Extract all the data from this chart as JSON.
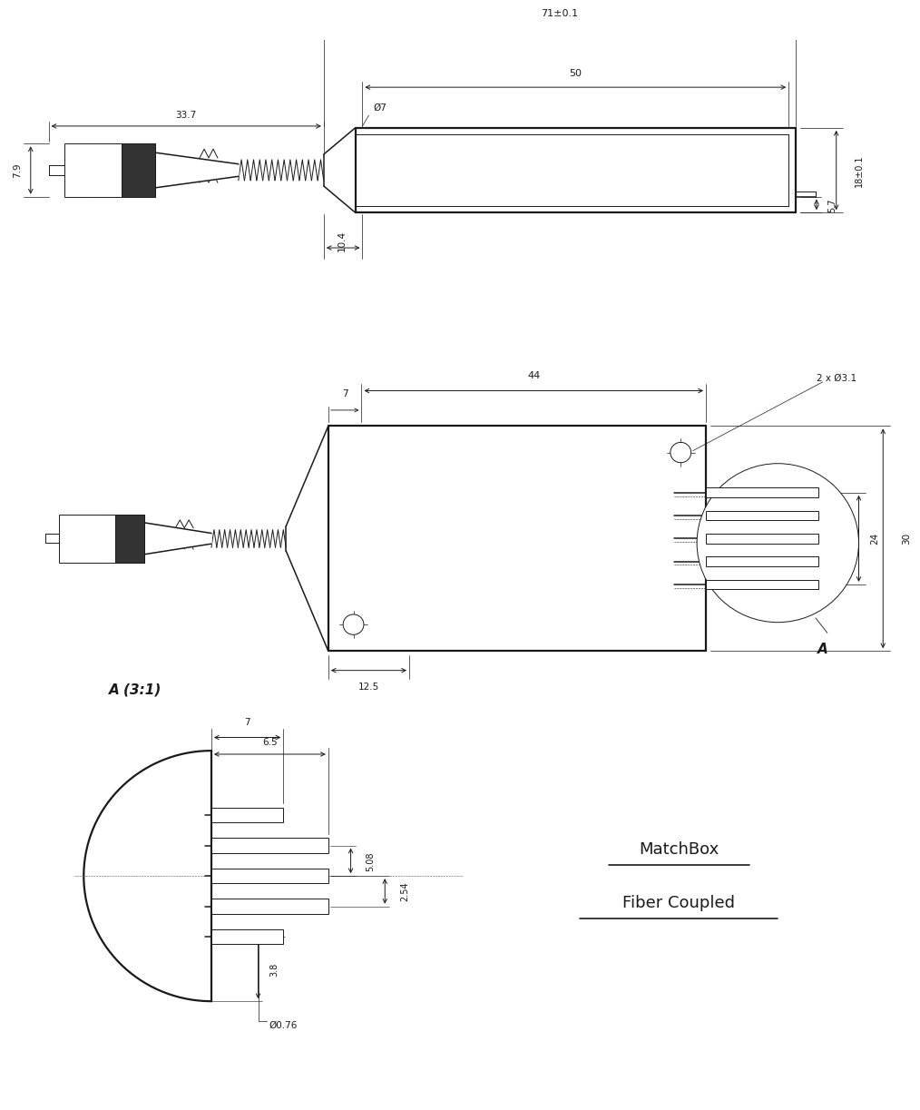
{
  "bg_color": "#ffffff",
  "line_color": "#1a1a1a",
  "fig_width": 10.0,
  "fig_height": 12.03,
  "dpi": 100,
  "view1": {
    "dim_71": "71±0.1",
    "dim_50": "50",
    "dim_33_7": "33.7",
    "dim_7_9": "7.9",
    "dim_phi7": "Ø7",
    "dim_10_4": "10.4",
    "dim_18": "18±0.1",
    "dim_5_7": "5.7"
  },
  "view2": {
    "dim_7": "7",
    "dim_44": "44",
    "dim_2x_phi31": "2 x Ø3.1",
    "dim_12_5": "12.5",
    "dim_24": "24",
    "dim_30": "30",
    "label_A": "A"
  },
  "view3": {
    "dim_7": "7",
    "dim_6_5": "6.5",
    "dim_5_08": "5.08",
    "dim_2_54": "2.54",
    "dim_3_8": "3.8",
    "dim_phi076": "Ø0.76",
    "label_A31": "A (3:1)"
  },
  "matchbox_line1": "MatchBox",
  "matchbox_line2": "Fiber Coupled"
}
